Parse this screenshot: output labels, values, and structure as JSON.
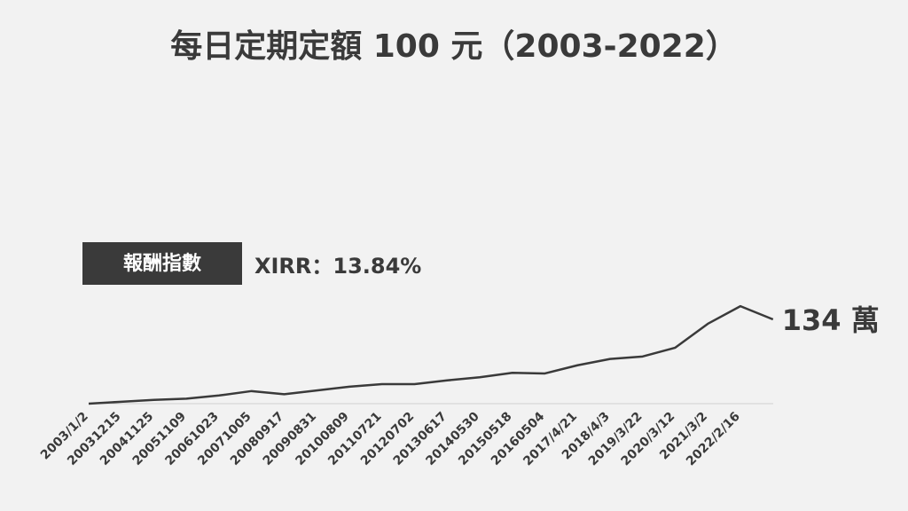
{
  "chart_data": {
    "type": "line",
    "title": "每日定期定額 100 元（2003-2022）",
    "tag": "報酬指數",
    "annotation": "XIRR：13.84%",
    "categories": [
      "2003/1/2",
      "20031215",
      "20041125",
      "20051109",
      "20061023",
      "20071005",
      "20080917",
      "20090831",
      "20100809",
      "20110721",
      "20120702",
      "20130617",
      "20140530",
      "20150518",
      "20160504",
      "2017/4/21",
      "2018/4/3",
      "2019/3/22",
      "2020/3/12",
      "2021/3/2",
      "2022/2/16",
      null
    ],
    "series": [
      {
        "name": null,
        "color": "#3a3a3a",
        "values": [
          0,
          3,
          6,
          8,
          13,
          20,
          15,
          21,
          27,
          31,
          31,
          37,
          42,
          49,
          48,
          61,
          71,
          75,
          89,
          127,
          155,
          134
        ],
        "value_labels": [
          null,
          null,
          null,
          null,
          null,
          null,
          null,
          null,
          null,
          null,
          null,
          null,
          null,
          null,
          null,
          null,
          null,
          null,
          null,
          null,
          null,
          "134 萬"
        ]
      }
    ]
  }
}
